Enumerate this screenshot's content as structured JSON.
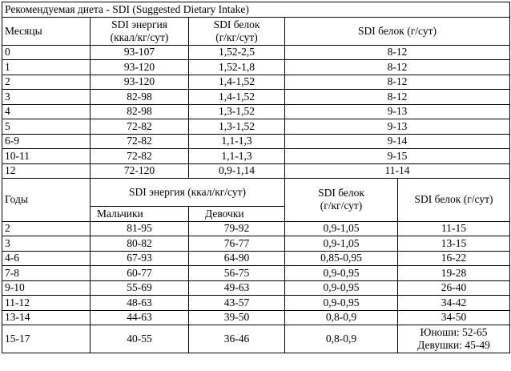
{
  "title": "Рекомендуемая диета - SDI (Suggested Dietary Intake)",
  "infants": {
    "header": [
      "Месяцы",
      [
        "SDI энергия",
        "(ккал/кг/сут)"
      ],
      [
        "SDI белок",
        "(г/кг/сут)"
      ],
      "SDI белок (г/сут)"
    ],
    "rows": [
      [
        "0",
        "93-107",
        "1,52-2,5",
        "8-12"
      ],
      [
        "1",
        "93-120",
        "1,52-1,8",
        "8-12"
      ],
      [
        "2",
        "93-120",
        "1,4-1,52",
        "8-12"
      ],
      [
        "3",
        "82-98",
        "1,4-1,52",
        "8-12"
      ],
      [
        "4",
        "82-98",
        "1,3-1,52",
        "9-13"
      ],
      [
        "5",
        "72-82",
        "1,3-1,52",
        "9-13"
      ],
      [
        "6-9",
        "72-82",
        "1,1-1,3",
        "9-14"
      ],
      [
        "10-11",
        "72-82",
        "1,1-1,3",
        "9-15"
      ],
      [
        "12",
        "72-120",
        "0,9-1,14",
        "11-14"
      ]
    ]
  },
  "children": {
    "header": [
      "Годы",
      "SDI энергия (ккал/кг/сут)",
      [
        "SDI белок",
        "(г/кг/сут)"
      ],
      "SDI белок (г/сут)"
    ],
    "subheader": [
      "Мальчики",
      "Девочки"
    ],
    "rows": [
      [
        "2",
        "81-95",
        "79-92",
        "0,9-1,05",
        "11-15"
      ],
      [
        "3",
        "80-82",
        "76-77",
        "0,9-1,05",
        "13-15"
      ],
      [
        "4-6",
        "67-93",
        "64-90",
        "0,85-0,95",
        "16-22"
      ],
      [
        "7-8",
        "60-77",
        "56-75",
        "0,9-0,95",
        "19-28"
      ],
      [
        "9-10",
        "55-69",
        "49-63",
        "0,9-0,95",
        "26-40"
      ],
      [
        "11-12",
        "48-63",
        "43-57",
        "0,9-0,95",
        "34-42"
      ],
      [
        "13-14",
        "44-63",
        "39-50",
        "0,8-0,9",
        "34-50"
      ],
      [
        "15-17",
        "40-55",
        "36-46",
        "0,8-0,9",
        [
          "Юноши: 52-65",
          "Девушки: 45-49"
        ]
      ]
    ]
  }
}
